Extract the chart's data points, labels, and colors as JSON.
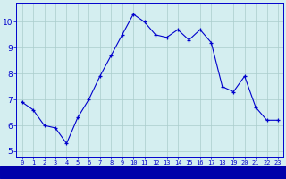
{
  "hours": [
    0,
    1,
    2,
    3,
    4,
    5,
    6,
    7,
    8,
    9,
    10,
    11,
    12,
    13,
    14,
    15,
    16,
    17,
    18,
    19,
    20,
    21,
    22,
    23
  ],
  "temps": [
    6.9,
    6.6,
    6.0,
    5.9,
    5.3,
    6.3,
    7.0,
    7.9,
    8.7,
    9.5,
    10.3,
    10.0,
    9.5,
    9.4,
    9.7,
    9.3,
    9.7,
    9.2,
    7.5,
    7.3,
    7.9,
    6.7,
    6.2,
    6.2
  ],
  "line_color": "#0000cc",
  "marker": "+",
  "background_color": "#d4eef0",
  "grid_color": "#aacccc",
  "xlabel_color": "#0000cc",
  "ylabel_ticks": [
    5,
    6,
    7,
    8,
    9,
    10
  ],
  "xlim": [
    -0.5,
    23.5
  ],
  "ylim": [
    4.8,
    10.75
  ],
  "tick_color": "#0000cc",
  "spine_color": "#0000cc",
  "bottom_bar_color": "#0000aa",
  "bottom_bar_text_color": "#ffffff"
}
